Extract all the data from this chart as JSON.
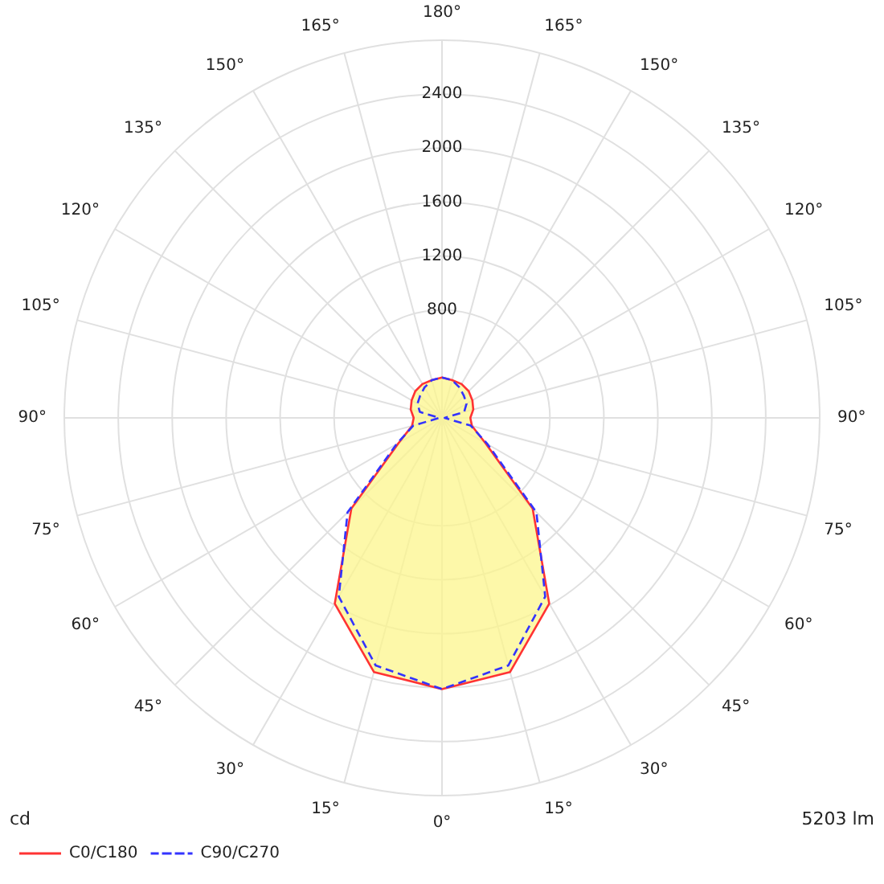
{
  "chart_data": {
    "type": "radar",
    "categories": [
      "180°",
      "165°",
      "150°",
      "135°",
      "120°",
      "105°",
      "90°",
      "75°",
      "60°",
      "45°",
      "30°",
      "15°",
      "0°",
      "15°",
      "30°",
      "45°",
      "60°",
      "75°",
      "90°",
      "105°",
      "120°",
      "135°",
      "150°",
      "165°"
    ],
    "series": [
      {
        "name": "C0/C180",
        "color": "#ff3333",
        "line_style": "solid",
        "values": [
          300,
          290,
          290,
          280,
          260,
          240,
          210,
          230,
          370,
          950,
          1590,
          1950,
          2010,
          1950,
          1590,
          950,
          370,
          230,
          210,
          240,
          260,
          280,
          290,
          290
        ]
      },
      {
        "name": "C90/C270",
        "color": "#3333ff",
        "line_style": "dashed",
        "values": [
          300,
          290,
          260,
          230,
          210,
          170,
          20,
          220,
          390,
          990,
          1530,
          1900,
          2010,
          1900,
          1530,
          990,
          390,
          220,
          20,
          170,
          210,
          230,
          260,
          290
        ]
      }
    ],
    "ylim": [
      0,
      2800
    ],
    "yticks": [
      800,
      1200,
      1600,
      2000,
      2400
    ],
    "grid": true,
    "marker": "none",
    "legend": "bottom left",
    "annotations": [
      "cd",
      "5203 lm"
    ]
  }
}
